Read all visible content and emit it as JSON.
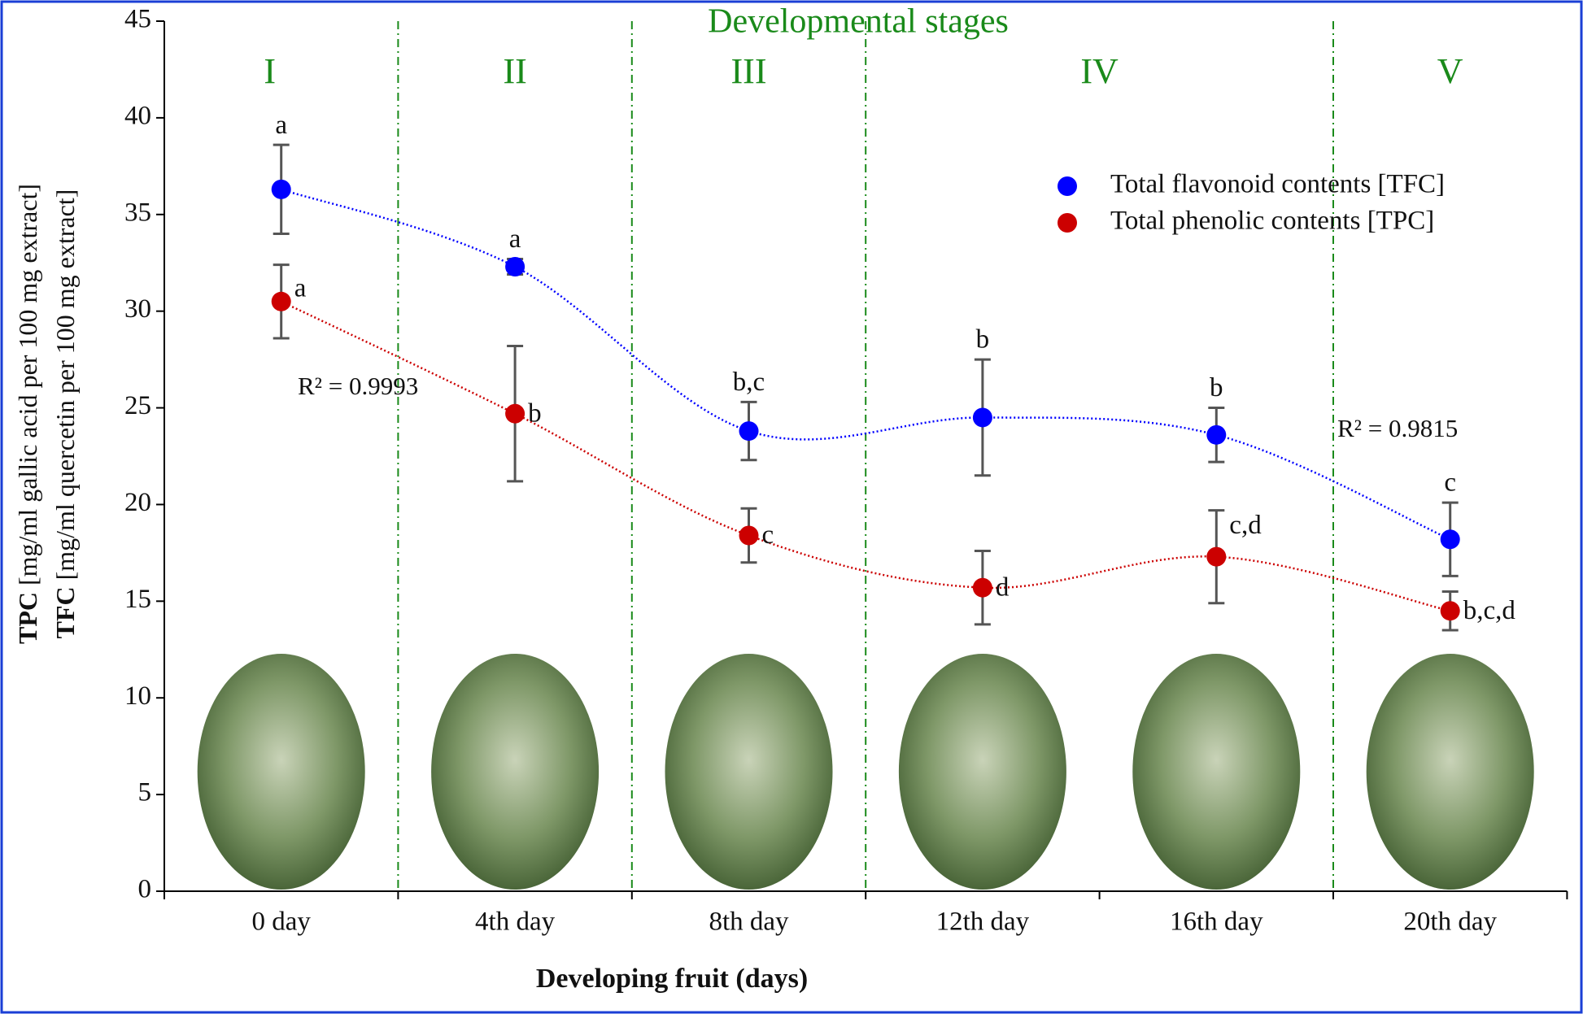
{
  "chart_data": {
    "type": "scatter",
    "title": "Developmental stages",
    "stages": [
      "I",
      "II",
      "III",
      "IV",
      "V"
    ],
    "x_label": "Developing fruit (days)",
    "y_label_lines": [
      [
        "TPC",
        " [mg/ml gallic acid per 100 mg extract]"
      ],
      [
        "TFC",
        " [mg/ml quercetin per 100 mg extract]"
      ]
    ],
    "categories": [
      "0 day",
      "4th day",
      "8th day",
      "12th day",
      "16th day",
      "20th day"
    ],
    "ylim": [
      0,
      45
    ],
    "yticks": [
      0,
      5,
      10,
      15,
      20,
      25,
      30,
      35,
      40,
      45
    ],
    "series": [
      {
        "name": "Total flavonoid contents [TFC]",
        "color": "#0000ff",
        "values": [
          36.3,
          32.3,
          23.8,
          24.5,
          23.6,
          18.2
        ],
        "errors": [
          2.3,
          0.4,
          1.5,
          3.0,
          1.4,
          1.9
        ],
        "labels": [
          "a",
          "a",
          "b,c",
          "b",
          "b",
          "c"
        ],
        "r2": "R² = 0.9815"
      },
      {
        "name": "Total phenolic contents [TPC]",
        "color": "#cc0000",
        "values": [
          30.5,
          24.7,
          18.4,
          15.7,
          17.3,
          14.5
        ],
        "errors": [
          1.9,
          3.5,
          1.4,
          1.9,
          2.4,
          1.0
        ],
        "labels": [
          "a",
          "b",
          "c",
          "d",
          "c,d",
          "b,c,d"
        ],
        "r2": "R² = 0.9993"
      }
    ]
  }
}
